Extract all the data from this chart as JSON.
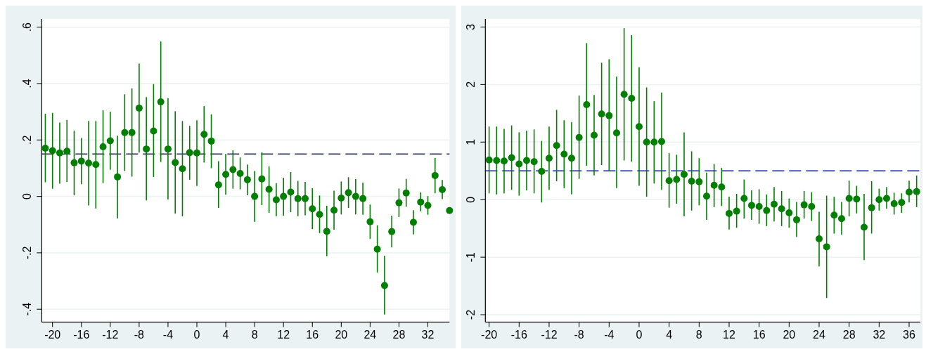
{
  "chart_data": [
    {
      "type": "scatter",
      "x": [
        -21,
        -20,
        -19,
        -18,
        -17,
        -16,
        -15,
        -14,
        -13,
        -12,
        -11,
        -10,
        -9,
        -8,
        -7,
        -6,
        -5,
        -4,
        -3,
        -2,
        -1,
        0,
        1,
        2,
        3,
        4,
        5,
        6,
        7,
        8,
        9,
        10,
        11,
        12,
        13,
        14,
        15,
        16,
        17,
        18,
        19,
        20,
        21,
        22,
        23,
        24,
        25,
        26,
        27,
        28,
        29,
        30,
        31,
        32,
        33,
        34,
        35
      ],
      "xlim": [
        -21.5,
        35
      ],
      "xticks": [
        -20,
        -16,
        -12,
        -8,
        -4,
        0,
        4,
        8,
        12,
        16,
        20,
        24,
        28,
        32
      ],
      "ylim": [
        -0.446,
        0.629
      ],
      "yticks": [
        {
          "value": -0.4,
          "label": "-.4"
        },
        {
          "value": -0.2,
          "label": "-.2"
        },
        0,
        {
          "value": 0.2,
          "label": ".2"
        },
        {
          "value": 0.4,
          "label": ".4"
        },
        {
          "value": 0.6,
          "label": ".6"
        }
      ],
      "grid": "y",
      "marker": "circle",
      "series": [
        {
          "color": "#007f00",
          "values": [
            0.171,
            0.162,
            0.154,
            0.16,
            0.119,
            0.125,
            0.118,
            0.113,
            0.176,
            0.197,
            0.069,
            0.226,
            0.226,
            0.313,
            0.168,
            0.232,
            0.335,
            0.168,
            0.12,
            0.098,
            0.155,
            0.154,
            0.22,
            0.196,
            0.041,
            0.078,
            0.095,
            0.081,
            0.059,
            0,
            0.062,
            0.025,
            -0.012,
            0,
            0.015,
            -0.008,
            -0.008,
            -0.044,
            -0.064,
            -0.124,
            -0.049,
            -0.006,
            0.013,
            0,
            -0.008,
            -0.09,
            -0.187,
            -0.316,
            -0.125,
            -0.023,
            0.012,
            -0.092,
            -0.02,
            -0.032,
            0.074,
            0.024,
            -0.05
          ],
          "errors": [
            [
              0.05,
              0.293
            ],
            [
              0.027,
              0.296
            ],
            [
              0.045,
              0.262
            ],
            [
              0.051,
              0.271
            ],
            [
              0.004,
              0.233
            ],
            [
              0.043,
              0.207
            ],
            [
              -0.032,
              0.267
            ],
            [
              -0.043,
              0.267
            ],
            [
              0.047,
              0.305
            ],
            [
              0.094,
              0.3
            ],
            [
              -0.078,
              0.215
            ],
            [
              0.09,
              0.362
            ],
            [
              0.07,
              0.383
            ],
            [
              0.155,
              0.471
            ],
            [
              -0.014,
              0.352
            ],
            [
              0.069,
              0.398
            ],
            [
              0.122,
              0.549
            ],
            [
              -0.011,
              0.348
            ],
            [
              -0.061,
              0.302
            ],
            [
              -0.071,
              0.267
            ],
            [
              0.059,
              0.25
            ],
            [
              0.037,
              0.27
            ],
            [
              0.12,
              0.32
            ],
            [
              0.1,
              0.291
            ],
            [
              -0.041,
              0.125
            ],
            [
              0.006,
              0.151
            ],
            [
              0.027,
              0.163
            ],
            [
              0.025,
              0.138
            ],
            [
              0.004,
              0.113
            ],
            [
              -0.09,
              0.09
            ],
            [
              -0.031,
              0.156
            ],
            [
              -0.058,
              0.106
            ],
            [
              -0.071,
              0.046
            ],
            [
              -0.068,
              0.066
            ],
            [
              -0.056,
              0.086
            ],
            [
              -0.07,
              0.055
            ],
            [
              -0.067,
              0.051
            ],
            [
              -0.116,
              0.029
            ],
            [
              -0.13,
              0.003
            ],
            [
              -0.212,
              -0.033
            ],
            [
              -0.118,
              0.02
            ],
            [
              -0.064,
              0.053
            ],
            [
              -0.041,
              0.068
            ],
            [
              -0.064,
              0.061
            ],
            [
              -0.065,
              0.049
            ],
            [
              -0.151,
              -0.029
            ],
            [
              -0.27,
              -0.103
            ],
            [
              -0.419,
              -0.211
            ],
            [
              -0.181,
              -0.068
            ],
            [
              -0.073,
              0.028
            ],
            [
              -0.037,
              0.062
            ],
            [
              -0.135,
              -0.049
            ],
            [
              -0.053,
              0.014
            ],
            [
              -0.065,
              0.001
            ],
            [
              0.011,
              0.136
            ],
            [
              -0.01,
              0.058
            ],
            null
          ]
        }
      ],
      "ref_lines": [
        {
          "axis": "y",
          "value": 0.15,
          "color": "#1c2659",
          "line_style": "dashed"
        }
      ]
    },
    {
      "type": "scatter",
      "x": [
        -20,
        -19,
        -18,
        -17,
        -16,
        -15,
        -14,
        -13,
        -12,
        -11,
        -10,
        -9,
        -8,
        -7,
        -6,
        -5,
        -4,
        -3,
        -2,
        -1,
        0,
        1,
        2,
        3,
        4,
        5,
        6,
        7,
        8,
        9,
        10,
        11,
        12,
        13,
        14,
        15,
        16,
        17,
        18,
        19,
        20,
        21,
        22,
        23,
        24,
        25,
        26,
        27,
        28,
        29,
        30,
        31,
        32,
        33,
        34,
        35,
        36,
        37
      ],
      "xlim": [
        -20.5,
        37.5
      ],
      "xticks": [
        -20,
        -16,
        -12,
        -8,
        -4,
        0,
        4,
        8,
        12,
        16,
        20,
        24,
        28,
        32,
        36
      ],
      "ylim": [
        -2.13,
        3.14
      ],
      "yticks": [
        -2,
        -1,
        0,
        1,
        2,
        3
      ],
      "grid": "y",
      "marker": "circle",
      "series": [
        {
          "color": "#007f00",
          "values": [
            0.69,
            0.68,
            0.67,
            0.73,
            0.62,
            0.68,
            0.66,
            0.49,
            0.72,
            0.94,
            0.79,
            0.72,
            1.08,
            1.65,
            1.12,
            1.49,
            1.46,
            1.16,
            1.83,
            1.76,
            1.27,
            1,
            1,
            1.01,
            0.33,
            0.35,
            0.44,
            0.32,
            0.31,
            0.06,
            0.25,
            0.22,
            -0.24,
            -0.2,
            0.02,
            -0.1,
            -0.12,
            -0.19,
            -0.08,
            -0.16,
            -0.23,
            -0.35,
            -0.09,
            -0.12,
            -0.68,
            -0.82,
            -0.27,
            -0.33,
            0.02,
            0.01,
            -0.48,
            -0.14,
            0,
            0.02,
            -0.07,
            -0.05,
            0.13,
            0.14
          ],
          "errors": [
            [
              0.11,
              1.27
            ],
            [
              0.09,
              1.27
            ],
            [
              0.11,
              1.23
            ],
            [
              0.17,
              1.29
            ],
            [
              0.07,
              1.17
            ],
            [
              0.16,
              1.2
            ],
            [
              0.11,
              1.22
            ],
            [
              -0.05,
              1.02
            ],
            [
              0.17,
              1.27
            ],
            [
              0.32,
              1.56
            ],
            [
              0.2,
              1.38
            ],
            [
              0.09,
              1.35
            ],
            [
              0.36,
              1.81
            ],
            [
              0.59,
              2.72
            ],
            [
              0.42,
              1.82
            ],
            [
              0.6,
              2.38
            ],
            [
              0.49,
              2.44
            ],
            [
              0.2,
              2.14
            ],
            [
              0.68,
              2.98
            ],
            [
              0.66,
              2.86
            ],
            [
              0.24,
              2.3
            ],
            [
              0.05,
              1.95
            ],
            [
              0.28,
              1.71
            ],
            [
              0.17,
              1.86
            ],
            [
              -0.14,
              0.81
            ],
            [
              -0.07,
              0.78
            ],
            [
              -0.29,
              1.17
            ],
            [
              -0.19,
              0.84
            ],
            [
              -0.1,
              0.72
            ],
            [
              -0.35,
              0.47
            ],
            [
              -0.13,
              0.62
            ],
            [
              -0.11,
              0.55
            ],
            [
              -0.52,
              0.05
            ],
            [
              -0.49,
              0.1
            ],
            [
              -0.33,
              0.35
            ],
            [
              -0.35,
              0.16
            ],
            [
              -0.42,
              0.18
            ],
            [
              -0.46,
              0.09
            ],
            [
              -0.38,
              0.22
            ],
            [
              -0.46,
              0.15
            ],
            [
              -0.49,
              0.02
            ],
            [
              -0.65,
              -0.04
            ],
            [
              -0.33,
              0.15
            ],
            [
              -0.37,
              0.13
            ],
            [
              -1.16,
              -0.21
            ],
            [
              -1.71,
              0.07
            ],
            [
              -0.59,
              0.05
            ],
            [
              -0.61,
              -0.04
            ],
            [
              -0.29,
              0.33
            ],
            [
              -0.24,
              0.24
            ],
            [
              -1.05,
              0.1
            ],
            [
              -0.59,
              0.32
            ],
            [
              -0.19,
              0.19
            ],
            [
              -0.16,
              0.22
            ],
            [
              -0.26,
              0.12
            ],
            [
              -0.23,
              0.11
            ],
            [
              -0.05,
              0.33
            ],
            [
              -0.13,
              0.42
            ]
          ]
        }
      ],
      "ref_lines": [
        {
          "axis": "y",
          "value": 0.5,
          "color": "#0a0af0",
          "line_style": "dashed"
        }
      ]
    }
  ]
}
